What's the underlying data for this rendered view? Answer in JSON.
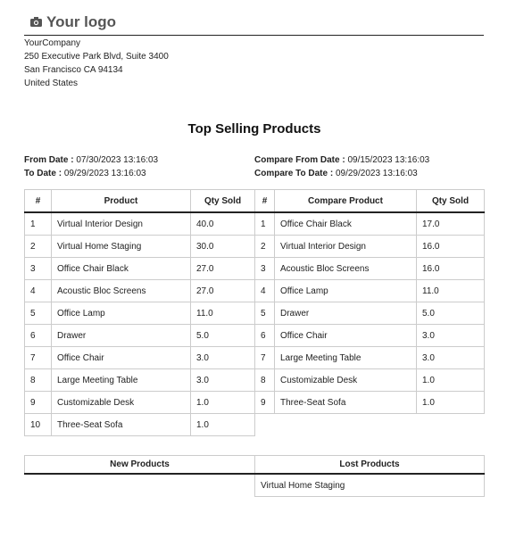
{
  "header": {
    "logo": "Your logo",
    "company": [
      "YourCompany",
      "250 Executive Park Blvd, Suite 3400",
      "San Francisco CA 94134",
      "United States"
    ]
  },
  "title": "Top Selling Products",
  "dates": {
    "from": {
      "label": "From Date :",
      "value": "07/30/2023 13:16:03"
    },
    "to": {
      "label": "To Date :",
      "value": "09/29/2023 13:16:03"
    },
    "compare_from": {
      "label": "Compare From Date :",
      "value": "09/15/2023 13:16:03"
    },
    "compare_to": {
      "label": "Compare To Date :",
      "value": "09/29/2023 13:16:03"
    }
  },
  "current_table": {
    "columns": [
      "#",
      "Product",
      "Qty Sold"
    ],
    "rows": [
      [
        "1",
        "Virtual Interior Design",
        "40.0"
      ],
      [
        "2",
        "Virtual Home Staging",
        "30.0"
      ],
      [
        "3",
        "Office Chair Black",
        "27.0"
      ],
      [
        "4",
        "Acoustic Bloc Screens",
        "27.0"
      ],
      [
        "5",
        "Office Lamp",
        "11.0"
      ],
      [
        "6",
        "Drawer",
        "5.0"
      ],
      [
        "7",
        "Office Chair",
        "3.0"
      ],
      [
        "8",
        "Large Meeting Table",
        "3.0"
      ],
      [
        "9",
        "Customizable Desk",
        "1.0"
      ],
      [
        "10",
        "Three-Seat Sofa",
        "1.0"
      ]
    ]
  },
  "compare_table": {
    "columns": [
      "#",
      "Compare Product",
      "Qty Sold"
    ],
    "rows": [
      [
        "1",
        "Office Chair Black",
        "17.0"
      ],
      [
        "2",
        "Virtual Interior Design",
        "16.0"
      ],
      [
        "3",
        "Acoustic Bloc Screens",
        "16.0"
      ],
      [
        "4",
        "Office Lamp",
        "11.0"
      ],
      [
        "5",
        "Drawer",
        "5.0"
      ],
      [
        "6",
        "Office Chair",
        "3.0"
      ],
      [
        "7",
        "Large Meeting Table",
        "3.0"
      ],
      [
        "8",
        "Customizable Desk",
        "1.0"
      ],
      [
        "9",
        "Three-Seat Sofa",
        "1.0"
      ]
    ]
  },
  "changes_table": {
    "columns": [
      "New Products",
      "Lost Products"
    ],
    "lost_products": [
      "Virtual Home Staging"
    ]
  }
}
